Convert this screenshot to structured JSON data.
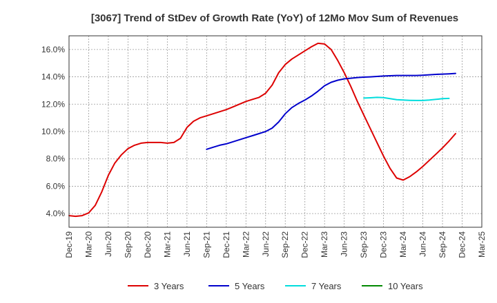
{
  "chart_data": {
    "type": "line",
    "title": "[3067]  Trend of StDev of Growth Rate (YoY) of 12Mo Mov Sum of Revenues",
    "xlabel": "",
    "ylabel": "",
    "ylim": [
      3.0,
      17.0
    ],
    "yticks": [
      4.0,
      6.0,
      8.0,
      10.0,
      12.0,
      14.0,
      16.0
    ],
    "ytick_labels": [
      "4.0%",
      "6.0%",
      "8.0%",
      "10.0%",
      "12.0%",
      "14.0%",
      "16.0%"
    ],
    "xtick_labels": [
      "Dec-19",
      "Mar-20",
      "Jun-20",
      "Sep-20",
      "Dec-20",
      "Mar-21",
      "Jun-21",
      "Sep-21",
      "Dec-21",
      "Mar-22",
      "Jun-22",
      "Sep-22",
      "Dec-22",
      "Mar-23",
      "Jun-23",
      "Sep-23",
      "Dec-23",
      "Mar-24",
      "Jun-24",
      "Sep-24",
      "Dec-24",
      "Mar-25"
    ],
    "grid": true,
    "legend_position": "bottom",
    "series": [
      {
        "name": "3 Years",
        "color": "#dd0000",
        "start_index": 0,
        "values": [
          3.85,
          3.8,
          3.85,
          4.05,
          4.6,
          5.6,
          6.8,
          7.7,
          8.3,
          8.75,
          9.0,
          9.15,
          9.2,
          9.2,
          9.2,
          9.15,
          9.2,
          9.5,
          10.3,
          10.75,
          11.0,
          11.15,
          11.3,
          11.45,
          11.6,
          11.8,
          12.0,
          12.2,
          12.35,
          12.5,
          12.8,
          13.4,
          14.3,
          14.9,
          15.3,
          15.6,
          15.9,
          16.2,
          16.45,
          16.4,
          16.0,
          15.2,
          14.3,
          13.3,
          12.2,
          11.2,
          10.2,
          9.2,
          8.2,
          7.3,
          6.6,
          6.45,
          6.7,
          7.05,
          7.45,
          7.9,
          8.35,
          8.8,
          9.3,
          9.85
        ]
      },
      {
        "name": "5 Years",
        "color": "#0000cc",
        "start_index": 21,
        "values": [
          8.7,
          8.85,
          9.0,
          9.1,
          9.25,
          9.4,
          9.55,
          9.7,
          9.85,
          10.0,
          10.25,
          10.7,
          11.3,
          11.75,
          12.05,
          12.3,
          12.6,
          12.95,
          13.35,
          13.6,
          13.75,
          13.85,
          13.9,
          13.95,
          13.98,
          14.0,
          14.03,
          14.06,
          14.08,
          14.1,
          14.1,
          14.1,
          14.1,
          14.12,
          14.15,
          14.18,
          14.2,
          14.22,
          14.25
        ]
      },
      {
        "name": "7 Years",
        "color": "#00dddd",
        "start_index": 45,
        "values": [
          12.45,
          12.47,
          12.5,
          12.48,
          12.4,
          12.33,
          12.3,
          12.28,
          12.27,
          12.27,
          12.3,
          12.35,
          12.4,
          12.42
        ]
      },
      {
        "name": "10 Years",
        "color": "#008800",
        "start_index": 0,
        "values": []
      }
    ]
  }
}
